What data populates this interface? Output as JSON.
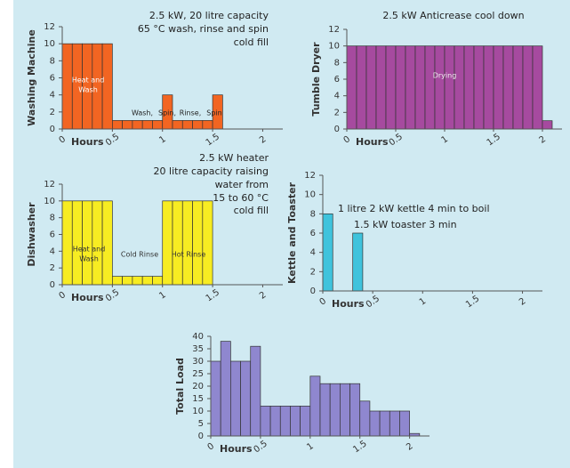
{
  "chart_data": [
    {
      "type": "histogram",
      "ylabel": "Washing Machine",
      "xlabel": "Hours",
      "color": "#f26522",
      "bins": [
        0,
        0.1,
        0.2,
        0.3,
        0.4,
        0.5,
        0.6,
        0.7,
        0.8,
        0.9,
        1,
        1.1,
        1.2,
        1.3,
        1.4,
        1.5,
        1.6
      ],
      "values": [
        10,
        10,
        10,
        10,
        10,
        1,
        1,
        1,
        1,
        1,
        4,
        1,
        1,
        1,
        1,
        4
      ],
      "xlim": [
        0,
        2.2
      ],
      "xticks": [
        0,
        0.5,
        1,
        1.5,
        2
      ],
      "ylim": [
        0,
        12
      ],
      "yticks": [
        0,
        2,
        4,
        6,
        8,
        10,
        12
      ],
      "annotations": [
        "2.5 kW, 20 litre capacity",
        "65 °C wash, rinse and spin",
        "cold fill",
        "Heat and",
        "Wash",
        "Wash,",
        "Spin,",
        "Rinse,",
        "Spin"
      ]
    },
    {
      "type": "histogram",
      "ylabel": "Tumble Dryer",
      "xlabel": "Hours",
      "color": "#a64a9f",
      "bins": [
        0,
        0.1,
        0.2,
        0.3,
        0.4,
        0.5,
        0.6,
        0.7,
        0.8,
        0.9,
        1,
        1.1,
        1.2,
        1.3,
        1.4,
        1.5,
        1.6,
        1.7,
        1.8,
        1.9,
        2,
        2.1
      ],
      "values": [
        10,
        10,
        10,
        10,
        10,
        10,
        10,
        10,
        10,
        10,
        10,
        10,
        10,
        10,
        10,
        10,
        10,
        10,
        10,
        10,
        1
      ],
      "xlim": [
        0,
        2.2
      ],
      "xticks": [
        0,
        0.5,
        1,
        1.5,
        2
      ],
      "ylim": [
        0,
        12
      ],
      "yticks": [
        0,
        2,
        4,
        6,
        8,
        10,
        12
      ],
      "annotations": [
        "2.5 kW Anticrease cool down",
        "Drying"
      ]
    },
    {
      "type": "histogram",
      "ylabel": "Dishwasher",
      "xlabel": "Hours",
      "color": "#f7ec22",
      "bins": [
        0,
        0.1,
        0.2,
        0.3,
        0.4,
        0.5,
        0.6,
        0.7,
        0.8,
        0.9,
        1,
        1.1,
        1.2,
        1.3,
        1.4,
        1.5
      ],
      "values": [
        10,
        10,
        10,
        10,
        10,
        1,
        1,
        1,
        1,
        1,
        10,
        10,
        10,
        10,
        10
      ],
      "xlim": [
        0,
        2.2
      ],
      "xticks": [
        0,
        0.5,
        1,
        1.5,
        2
      ],
      "ylim": [
        0,
        12
      ],
      "yticks": [
        0,
        2,
        4,
        6,
        8,
        10,
        12
      ],
      "annotations": [
        "2.5 kW heater",
        "20 litre capacity raising",
        "water from",
        "15 to 60 °C",
        "cold fill",
        "Heat and",
        "Wash",
        "Cold Rinse",
        "Hot Rinse"
      ]
    },
    {
      "type": "histogram",
      "ylabel": "Kettle and Toaster",
      "xlabel": "Hours",
      "color": "#3fc3dc",
      "bins": [
        0,
        0.1,
        0.2,
        0.3,
        0.4
      ],
      "values": [
        8,
        0,
        0,
        6
      ],
      "xlim": [
        0,
        2.2
      ],
      "xticks": [
        0,
        0.5,
        1,
        1.5,
        2
      ],
      "ylim": [
        0,
        12
      ],
      "yticks": [
        0,
        2,
        4,
        6,
        8,
        10,
        12
      ],
      "annotations": [
        "1 litre 2 kW kettle 4 min to boil",
        "1.5 kW toaster 3 min"
      ]
    },
    {
      "type": "histogram",
      "ylabel": "Total Load",
      "xlabel": "Hours",
      "color": "#8f87cf",
      "bins": [
        0,
        0.1,
        0.2,
        0.3,
        0.4,
        0.5,
        0.6,
        0.7,
        0.8,
        0.9,
        1,
        1.1,
        1.2,
        1.3,
        1.4,
        1.5,
        1.6,
        1.7,
        1.8,
        1.9,
        2,
        2.1
      ],
      "values": [
        30,
        38,
        30,
        30,
        36,
        12,
        12,
        12,
        12,
        12,
        24,
        21,
        21,
        21,
        21,
        14,
        10,
        10,
        10,
        10,
        1
      ],
      "xlim": [
        0,
        2.2
      ],
      "xticks": [
        0,
        0.5,
        1,
        1.5,
        2
      ],
      "ylim": [
        0,
        40
      ],
      "yticks": [
        0,
        5,
        10,
        15,
        20,
        25,
        30,
        35,
        40
      ],
      "annotations": []
    }
  ]
}
